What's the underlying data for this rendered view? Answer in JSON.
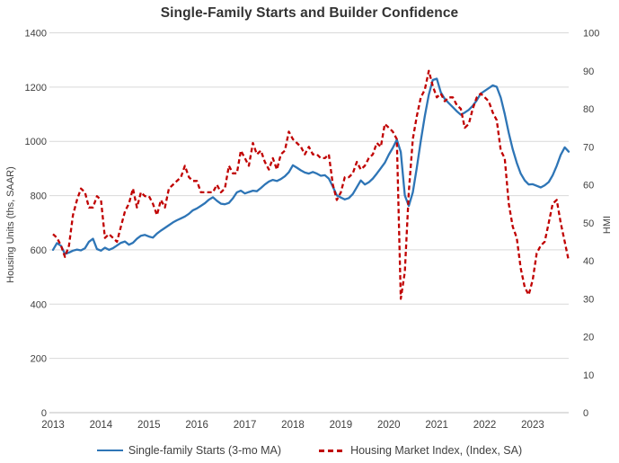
{
  "chart_data": {
    "type": "line",
    "title": "Single-Family Starts and Builder Confidence",
    "x_start": "2013-01",
    "x_end": "2023-10",
    "x_frequency": "monthly",
    "x_tick_labels": [
      "2013",
      "2014",
      "2015",
      "2016",
      "2017",
      "2018",
      "2019",
      "2020",
      "2021",
      "2022",
      "2023"
    ],
    "grid": "horizontal",
    "legend_position": "bottom",
    "left_axis": {
      "label": "Housing Units (ths, SAAR)",
      "min": 0,
      "max": 1400,
      "step": 200,
      "ticks": [
        "0",
        "200",
        "400",
        "600",
        "800",
        "1000",
        "1200",
        "1400"
      ]
    },
    "right_axis": {
      "label": "HMI",
      "min": 0,
      "max": 100,
      "step": 10,
      "ticks": [
        "0",
        "10",
        "20",
        "30",
        "40",
        "50",
        "60",
        "70",
        "80",
        "90",
        "100"
      ]
    },
    "series": [
      {
        "name": "Single-family Starts (3-mo MA)",
        "axis": "left",
        "color": "#2E75B6",
        "style": "solid",
        "values": [
          600,
          625,
          615,
          585,
          590,
          597,
          601,
          598,
          606,
          630,
          641,
          603,
          597,
          608,
          600,
          606,
          616,
          626,
          631,
          619,
          626,
          641,
          652,
          655,
          649,
          645,
          660,
          671,
          681,
          691,
          701,
          709,
          716,
          723,
          733,
          746,
          753,
          762,
          772,
          785,
          794,
          781,
          770,
          768,
          773,
          790,
          812,
          818,
          808,
          813,
          818,
          816,
          828,
          841,
          852,
          858,
          854,
          861,
          871,
          886,
          912,
          903,
          893,
          885,
          881,
          887,
          881,
          873,
          875,
          863,
          833,
          801,
          793,
          786,
          791,
          806,
          831,
          856,
          841,
          849,
          863,
          881,
          901,
          921,
          951,
          976,
          1006,
          961,
          801,
          762,
          812,
          902,
          1002,
          1092,
          1172,
          1226,
          1231,
          1181,
          1156,
          1141,
          1126,
          1111,
          1098,
          1106,
          1116,
          1131,
          1151,
          1176,
          1186,
          1196,
          1206,
          1201,
          1161,
          1101,
          1031,
          971,
          921,
          881,
          856,
          841,
          842,
          836,
          830,
          838,
          850,
          875,
          910,
          950,
          978,
          962
        ]
      },
      {
        "name": "Housing Market Index, (Index, SA)",
        "axis": "right",
        "color": "#C00000",
        "style": "dashed",
        "values": [
          47,
          46,
          44,
          41,
          44,
          52,
          56,
          59,
          58,
          54,
          54,
          57,
          56,
          46,
          47,
          46,
          45,
          49,
          53,
          55,
          59,
          54,
          58,
          57,
          57,
          55,
          52,
          56,
          54,
          59,
          60,
          61,
          62,
          65,
          62,
          61,
          61,
          58,
          58,
          58,
          58,
          60,
          58,
          59,
          65,
          63,
          63,
          69,
          67,
          65,
          71,
          68,
          69,
          66,
          64,
          67,
          64,
          68,
          69,
          74,
          72,
          71,
          70,
          68,
          70,
          68,
          68,
          67,
          67,
          68,
          60,
          56,
          58,
          62,
          62,
          63,
          66,
          64,
          65,
          67,
          68,
          71,
          70,
          76,
          75,
          74,
          72,
          30,
          37,
          58,
          72,
          78,
          83,
          85,
          90,
          86,
          83,
          84,
          82,
          83,
          83,
          81,
          80,
          75,
          76,
          80,
          83,
          84,
          83,
          82,
          79,
          77,
          69,
          67,
          55,
          49,
          46,
          38,
          33,
          31,
          35,
          42,
          44,
          45,
          50,
          55,
          56,
          50,
          45,
          40
        ]
      }
    ]
  }
}
